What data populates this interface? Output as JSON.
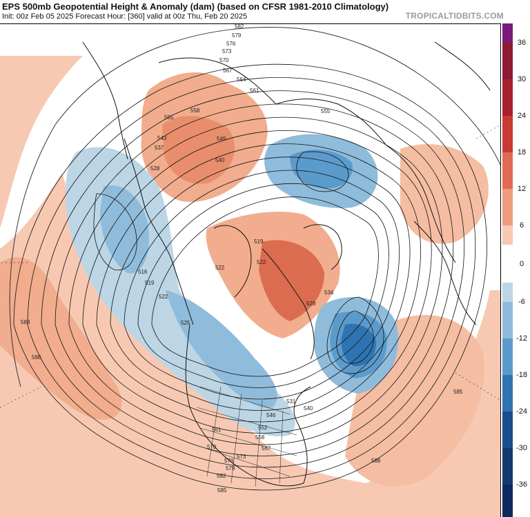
{
  "header": {
    "title": "EPS 500mb Geopotential Height & Anomaly (dam) (based on CFSR 1981-2010 Climatology)",
    "subtitle": "Init: 00z Feb 05 2025   Forecast Hour: [360]   valid at 00z Thu, Feb 20 2025",
    "brand": "TROPICALTIDBITS.COM"
  },
  "colorbar": {
    "labels": [
      "36",
      "30",
      "24",
      "18",
      "12",
      "6",
      "0",
      "-6",
      "-12",
      "-18",
      "-24",
      "-30",
      "-36"
    ],
    "colors": {
      "pos_36": "#7a1a7a",
      "pos_30": "#8e1a33",
      "pos_24": "#c0302e",
      "pos_18": "#da5a47",
      "pos_12": "#ec8f73",
      "pos_6": "#f7c9b3",
      "zero": "#ffffff",
      "neg_6": "#bcd6e6",
      "neg_12": "#8fbcdb",
      "neg_18": "#5b9bcb",
      "neg_24": "#2f74b2",
      "neg_30": "#1a4d8c",
      "neg_36": "#0d2a5e"
    }
  },
  "map": {
    "contour_labels": {
      "l516": "516",
      "l519a": "519",
      "l519b": "519",
      "l522a": "522",
      "l522b": "522",
      "l522c": "522",
      "l525": "525",
      "l528a": "528",
      "l528b": "528",
      "l531": "531",
      "l534": "534",
      "l537": "537",
      "l540a": "540",
      "l540b": "540",
      "l543": "543",
      "l546": "546",
      "l549": "549",
      "l552": "552",
      "l555a": "555",
      "l555b": "555",
      "l558a": "558",
      "l558b": "558",
      "l561a": "561",
      "l561b": "561",
      "l564": "564",
      "l567a": "567",
      "l567b": "567",
      "l570a": "570",
      "l570b": "570",
      "l573a": "573",
      "l573b": "573",
      "l576a": "576",
      "l576b": "576",
      "l579a": "579",
      "l579b": "579",
      "l582a": "582",
      "l582b": "582",
      "l585a": "585",
      "l585b": "585",
      "l588a": "588",
      "l588b": "588",
      "l588c": "588"
    }
  }
}
